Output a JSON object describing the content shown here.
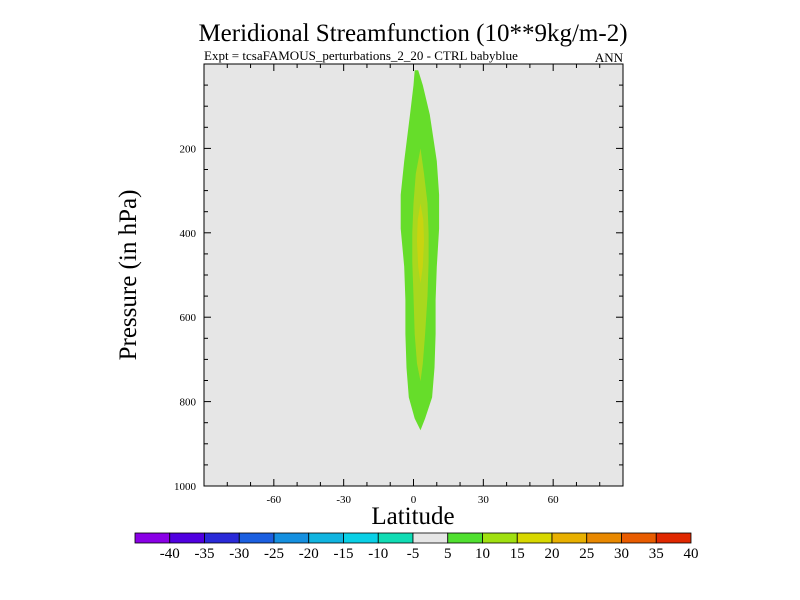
{
  "chart_data": {
    "type": "contour",
    "title": "Meridional Streamfunction (10**9kg/m-2)",
    "subtitle_left": "Expt = tcsaFAMOUS_perturbations_2_20 - CTRL babyblue",
    "subtitle_right": "ANN",
    "xlabel": "Latitude",
    "ylabel": "Pressure (in hPa)",
    "xlim": [
      -90,
      90
    ],
    "ylim": [
      1000,
      0
    ],
    "xticks": [
      -60,
      -30,
      0,
      30,
      60
    ],
    "yticks": [
      200,
      400,
      600,
      800,
      1000
    ],
    "background_color": "#e6e6e6",
    "colorbar": {
      "levels": [
        -40,
        -35,
        -30,
        -25,
        -20,
        -15,
        -10,
        -5,
        5,
        10,
        15,
        20,
        25,
        30,
        35,
        40
      ],
      "colors": [
        "#8a00e6",
        "#5000e0",
        "#2a2ad8",
        "#1b5fe0",
        "#1590e0",
        "#10b4e0",
        "#0ad0e6",
        "#10dcb4",
        "#e6e6e6",
        "#50e030",
        "#a0e010",
        "#d8d800",
        "#e8b000",
        "#e88800",
        "#e85c00",
        "#e02800"
      ]
    },
    "contours": [
      {
        "level_range": [
          5,
          10
        ],
        "color": "#66dd2a",
        "outline": [
          [
            2,
            15
          ],
          [
            4,
            50
          ],
          [
            7,
            120
          ],
          [
            10,
            230
          ],
          [
            11,
            310
          ],
          [
            11,
            390
          ],
          [
            10,
            480
          ],
          [
            9.5,
            560
          ],
          [
            9.5,
            640
          ],
          [
            9,
            720
          ],
          [
            8,
            790
          ],
          [
            5,
            840
          ],
          [
            3,
            868
          ],
          [
            0.5,
            840
          ],
          [
            -2,
            790
          ],
          [
            -3,
            720
          ],
          [
            -3.5,
            640
          ],
          [
            -3.5,
            560
          ],
          [
            -4,
            480
          ],
          [
            -5.5,
            390
          ],
          [
            -5.5,
            310
          ],
          [
            -4,
            230
          ],
          [
            -1.5,
            120
          ],
          [
            0,
            50
          ],
          [
            0.5,
            15
          ]
        ]
      },
      {
        "level_range": [
          10,
          15
        ],
        "color": "#a8d81e",
        "outline": [
          [
            3,
            200
          ],
          [
            4.5,
            260
          ],
          [
            6,
            330
          ],
          [
            6.5,
            400
          ],
          [
            6.5,
            470
          ],
          [
            6,
            550
          ],
          [
            5,
            640
          ],
          [
            4,
            710
          ],
          [
            3,
            752
          ],
          [
            1.5,
            710
          ],
          [
            0.5,
            640
          ],
          [
            0,
            550
          ],
          [
            -0.5,
            470
          ],
          [
            -0.5,
            400
          ],
          [
            0,
            330
          ],
          [
            1,
            260
          ]
        ]
      },
      {
        "level_range": [
          15,
          20
        ],
        "color": "#c8d410",
        "outline": [
          [
            3,
            330
          ],
          [
            4.2,
            370
          ],
          [
            4.5,
            420
          ],
          [
            4,
            480
          ],
          [
            3,
            520
          ],
          [
            2,
            480
          ],
          [
            1.5,
            420
          ],
          [
            1.8,
            370
          ]
        ]
      }
    ]
  }
}
